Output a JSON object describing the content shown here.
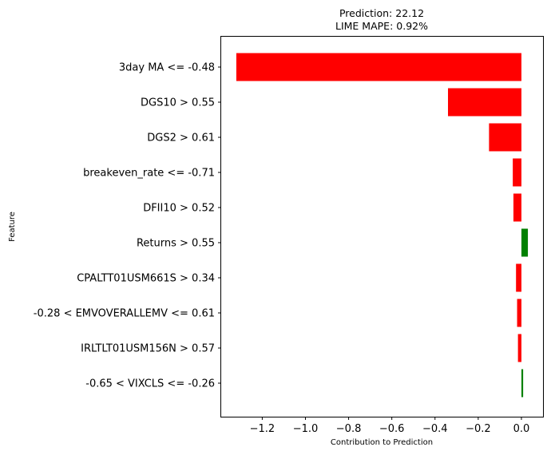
{
  "chart_data": {
    "type": "bar",
    "orientation": "horizontal",
    "title_lines": [
      "Prediction: 22.12",
      "LIME MAPE: 0.92%"
    ],
    "xlabel": "Contribution to Prediction",
    "ylabel": "Feature",
    "xlim": [
      -1.39,
      0.1
    ],
    "xticks": [
      -1.2,
      -1.0,
      -0.8,
      -0.6,
      -0.4,
      -0.2,
      0.0
    ],
    "xtick_labels": [
      "−1.2",
      "−1.0",
      "−0.8",
      "−0.6",
      "−0.4",
      "−0.2",
      "0.0"
    ],
    "grid": false,
    "colors": {
      "negative": "#ff0000",
      "positive": "#008000"
    },
    "categories": [
      "3day MA <= -0.48",
      "DGS10 > 0.55",
      "DGS2 > 0.61",
      "breakeven_rate <= -0.71",
      "DFII10 > 0.52",
      "Returns > 0.55",
      "CPALTT01USM661S > 0.34",
      "-0.28 < EMVOVERALLEMV <= 0.61",
      "IRLTLT01USM156N > 0.57",
      "-0.65 < VIXCLS <= -0.26"
    ],
    "values": [
      -1.32,
      -0.34,
      -0.15,
      -0.04,
      -0.037,
      0.03,
      -0.025,
      -0.02,
      -0.016,
      0.008
    ]
  }
}
